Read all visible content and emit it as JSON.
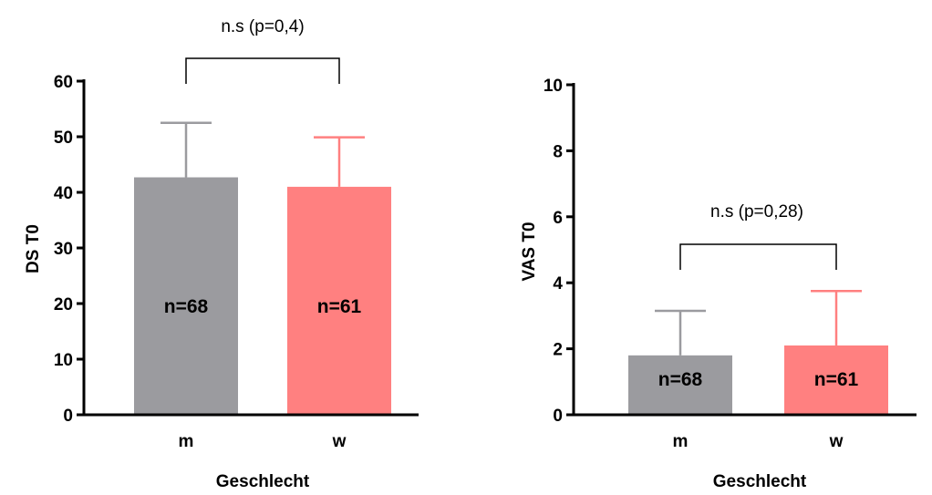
{
  "chart_data": [
    {
      "type": "bar",
      "categories": [
        "m",
        "w"
      ],
      "values": [
        42.7,
        41.0
      ],
      "errors": [
        9.8,
        8.9
      ],
      "colors": [
        "#9b9b9f",
        "#ff8080"
      ],
      "bar_labels": [
        "n=68",
        "n=61"
      ],
      "xlabel": "Geschlecht",
      "ylabel": "DS T0",
      "ylim": [
        0,
        60
      ],
      "yticks": [
        "0",
        "10",
        "20",
        "30",
        "40",
        "50",
        "60"
      ],
      "annotation": "n.s (p=0,4)",
      "grid": false
    },
    {
      "type": "bar",
      "categories": [
        "m",
        "w"
      ],
      "values": [
        1.8,
        2.1
      ],
      "errors": [
        1.35,
        1.65
      ],
      "colors": [
        "#9b9b9f",
        "#ff8080"
      ],
      "bar_labels": [
        "n=68",
        "n=61"
      ],
      "xlabel": "Geschlecht",
      "ylabel": "VAS T0",
      "ylim": [
        0,
        10
      ],
      "yticks": [
        "0",
        "2",
        "4",
        "6",
        "8",
        "10"
      ],
      "annotation": "n.s (p=0,28)",
      "grid": false
    }
  ]
}
